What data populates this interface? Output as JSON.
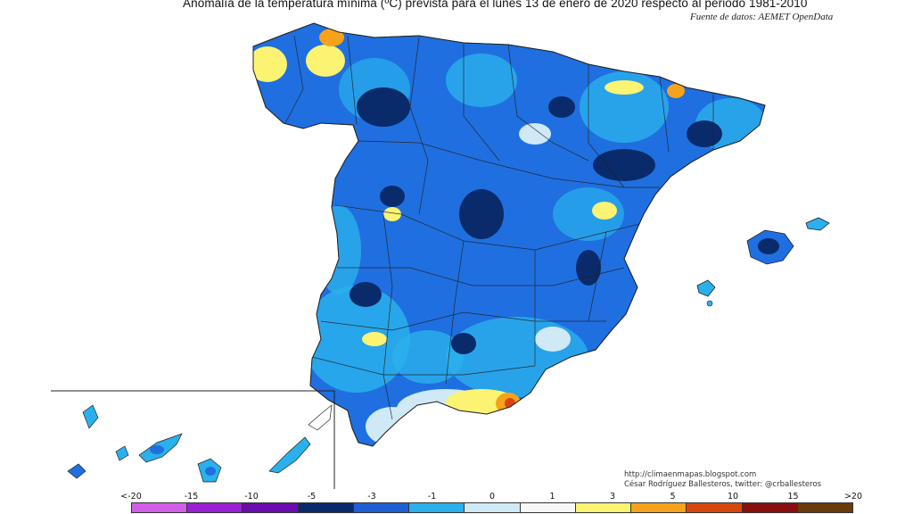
{
  "header": {
    "title": "Anomalía de la temperatura mínima (ºC) prevista para el lunes 13 de enero de 2020 respecto al periodo 1981-2010",
    "source": "Fuente de datos: AEMET OpenData"
  },
  "credits": {
    "blog": "http://climaenmapas.blogspot.com",
    "author": "César Rodríguez Ballesteros, twitter: @crballesteros"
  },
  "legend": {
    "ticks": [
      "<-20",
      "-15",
      "-10",
      "-5",
      "-3",
      "-1",
      "0",
      "1",
      "3",
      "5",
      "10",
      "15",
      ">20"
    ],
    "colors": [
      "#d35fe8",
      "#9b1fd6",
      "#6a0cb0",
      "#0a2b6b",
      "#1f5fd6",
      "#2ab0ec",
      "#cfe9f7",
      "#f7f7f7",
      "#fbf371",
      "#f6a21a",
      "#d9460d",
      "#8a0e0e",
      "#6b3a0a"
    ]
  }
}
